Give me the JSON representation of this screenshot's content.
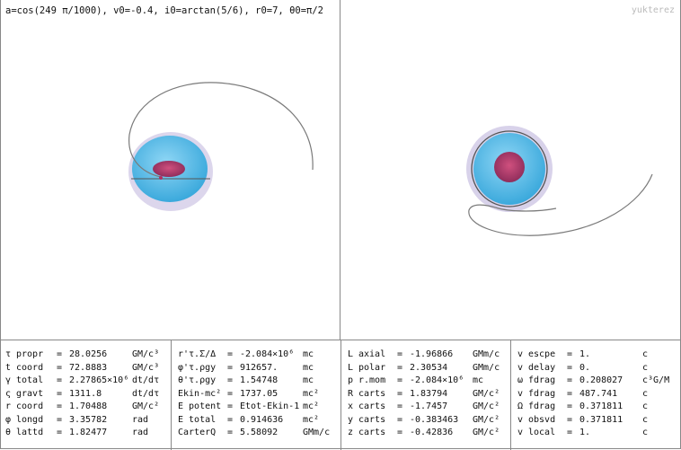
{
  "title": "a=cos(249 π/1000), v0=-0.4, i0=arctan(5/6), r0=7, θ0=π/2",
  "watermark": "yukterez",
  "colors": {
    "sphere": "#5bbde6",
    "ergo": "#d8d2ea",
    "horizon": "#a8386a",
    "orbit": "#777777",
    "border": "#888888"
  },
  "columns": [
    {
      "rows": [
        {
          "sym": "τ",
          "name": "propr",
          "eq": "=",
          "val": "28.0256",
          "unit": "GM/c³"
        },
        {
          "sym": "t",
          "name": "coord",
          "eq": "=",
          "val": "72.8883",
          "unit": "GM/c³"
        },
        {
          "sym": "γ",
          "name": "total",
          "eq": "=",
          "val": "2.27865×10⁶",
          "unit": "dt/dτ"
        },
        {
          "sym": "ς",
          "name": "gravt",
          "eq": "=",
          "val": "1311.8",
          "unit": "dt/dτ"
        },
        {
          "sym": "r",
          "name": "coord",
          "eq": "=",
          "val": "1.70488",
          "unit": "GM/c²"
        },
        {
          "sym": "φ",
          "name": "longd",
          "eq": "=",
          "val": "3.35782",
          "unit": "rad"
        },
        {
          "sym": "θ",
          "name": "lattd",
          "eq": "=",
          "val": "1.82477",
          "unit": "rad"
        }
      ]
    },
    {
      "rows": [
        {
          "sym": "r'τ.Σ/Δ",
          "name": "",
          "eq": "=",
          "val": "-2.084×10⁶",
          "unit": "mc"
        },
        {
          "sym": "φ'τ.ρgy",
          "name": "",
          "eq": "=",
          "val": "912657.",
          "unit": "mc"
        },
        {
          "sym": "θ'τ.ρgy",
          "name": "",
          "eq": "=",
          "val": "1.54748",
          "unit": "mc"
        },
        {
          "sym": "Ekin-mc²",
          "name": "",
          "eq": "=",
          "val": "1737.05",
          "unit": "mc²"
        },
        {
          "sym": "E potent",
          "name": "",
          "eq": "=",
          "val": "Etot-Ekin-1",
          "unit": "mc²"
        },
        {
          "sym": "E total",
          "name": "",
          "eq": "=",
          "val": "0.914636",
          "unit": "mc²"
        },
        {
          "sym": "CarterQ",
          "name": "",
          "eq": "=",
          "val": "5.58092",
          "unit": "GMm/c"
        }
      ]
    },
    {
      "rows": [
        {
          "sym": "L",
          "name": "axial",
          "eq": "=",
          "val": "-1.96866",
          "unit": "GMm/c"
        },
        {
          "sym": "L",
          "name": "polar",
          "eq": "=",
          "val": "2.30534",
          "unit": "GMm/c"
        },
        {
          "sym": "p",
          "name": "r.mom",
          "eq": "=",
          "val": "-2.084×10⁶",
          "unit": "mc"
        },
        {
          "sym": "R",
          "name": "carts",
          "eq": "=",
          "val": "1.83794",
          "unit": "GM/c²"
        },
        {
          "sym": "x",
          "name": "carts",
          "eq": "=",
          "val": "-1.7457",
          "unit": "GM/c²"
        },
        {
          "sym": "y",
          "name": "carts",
          "eq": "=",
          "val": "-0.383463",
          "unit": "GM/c²"
        },
        {
          "sym": "z",
          "name": "carts",
          "eq": "=",
          "val": "-0.42836",
          "unit": "GM/c²"
        }
      ]
    },
    {
      "rows": [
        {
          "sym": "v",
          "name": "escpe",
          "eq": "=",
          "val": "1.",
          "unit": "c"
        },
        {
          "sym": "v",
          "name": "delay",
          "eq": "=",
          "val": "0.",
          "unit": "c"
        },
        {
          "sym": "ω",
          "name": "fdrag",
          "eq": "=",
          "val": "0.208027",
          "unit": "c³G/M"
        },
        {
          "sym": "v",
          "name": "fdrag",
          "eq": "=",
          "val": "487.741",
          "unit": "c"
        },
        {
          "sym": "Ω",
          "name": "fdrag",
          "eq": "=",
          "val": "0.371811",
          "unit": "c"
        },
        {
          "sym": "v",
          "name": "obsvd",
          "eq": "=",
          "val": "0.371811",
          "unit": "c"
        },
        {
          "sym": "v",
          "name": "local",
          "eq": "=",
          "val": "1.",
          "unit": "c"
        }
      ]
    }
  ]
}
